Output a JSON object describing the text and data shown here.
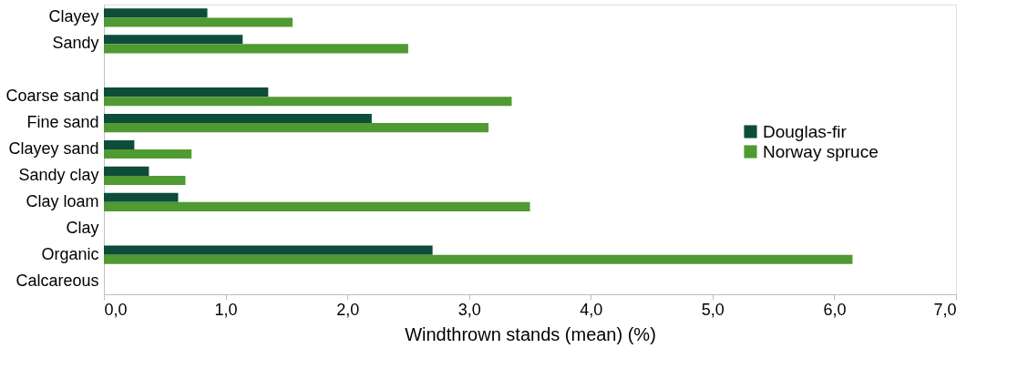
{
  "chart_data": {
    "type": "bar",
    "orientation": "horizontal",
    "xlabel": "Windthrown stands (mean) (%)",
    "categories": [
      "Clayey",
      "Sandy",
      null,
      "Coarse sand",
      "Fine sand",
      "Clayey sand",
      "Sandy clay",
      "Clay loam",
      "Clay",
      "Organic",
      "Calcareous"
    ],
    "series": [
      {
        "name": "Douglas-fir",
        "color": "#0e4d3a",
        "values": [
          0.85,
          1.14,
          null,
          1.35,
          2.2,
          0.25,
          0.37,
          0.61,
          null,
          2.7,
          null
        ]
      },
      {
        "name": "Norway spruce",
        "color": "#4f9a32",
        "values": [
          1.55,
          2.5,
          null,
          3.35,
          3.16,
          0.72,
          0.67,
          3.5,
          null,
          6.15,
          null
        ]
      }
    ],
    "xlim": [
      0,
      7
    ],
    "xticks": [
      {
        "value": 0,
        "label": "0,0"
      },
      {
        "value": 1,
        "label": "1,0"
      },
      {
        "value": 2,
        "label": "2,0"
      },
      {
        "value": 3,
        "label": "3,0"
      },
      {
        "value": 4,
        "label": "4,0"
      },
      {
        "value": 5,
        "label": "5,0"
      },
      {
        "value": 6,
        "label": "6,0"
      },
      {
        "value": 7,
        "label": "7,0"
      }
    ],
    "grid": false,
    "legend": "right"
  }
}
